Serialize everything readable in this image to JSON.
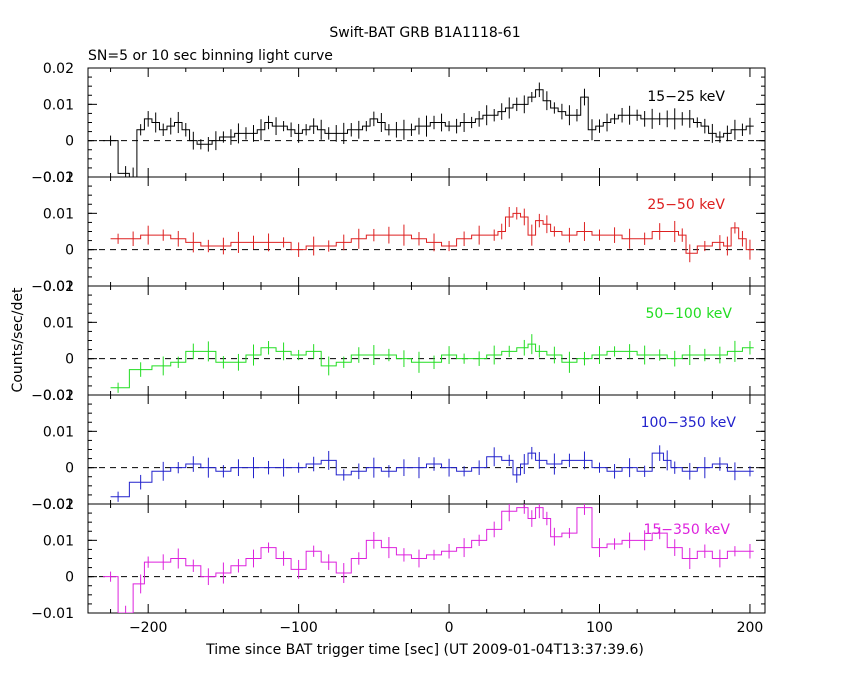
{
  "title": "Swift-BAT GRB B1A1118-61",
  "subtitle": "SN=5 or 10 sec binning light curve",
  "ylabel": "Counts/sec/det",
  "xlabel": "Time since BAT trigger time [sec] (UT 2009-01-04T13:37:39.6)",
  "chart_data": {
    "type": "line",
    "title": "Swift-BAT GRB B1A1118-61",
    "subtitle": "SN=5 or 10 sec binning light curve",
    "xlabel": "Time since BAT trigger time [sec] (UT 2009-01-04T13:37:39.6)",
    "ylabel": "Counts/sec/det",
    "xlim": [
      -240,
      210
    ],
    "x_ticks": [
      -200,
      -100,
      0,
      100,
      200
    ],
    "x_tick_labels": [
      "−200",
      "−100",
      "0",
      "100",
      "200"
    ],
    "grid": false,
    "legend": "none",
    "panels": [
      {
        "name": "15−25 keV",
        "color": "#000000",
        "ylim": [
          -0.01,
          0.02
        ],
        "y_ticks": [
          -0.01,
          0,
          0.01,
          0.02
        ],
        "y_tick_labels": [
          "−0.01",
          "0",
          "0.01",
          "0.02"
        ],
        "points": [
          [
            -225,
            0
          ],
          [
            -215,
            -0.009
          ],
          [
            -210,
            -0.01
          ],
          [
            -205,
            0.003
          ],
          [
            -200,
            0.006
          ],
          [
            -195,
            0.005
          ],
          [
            -190,
            0.003
          ],
          [
            -185,
            0.004
          ],
          [
            -180,
            0.005
          ],
          [
            -175,
            0.003
          ],
          [
            -170,
            0
          ],
          [
            -165,
            -0.001
          ],
          [
            -160,
            -0.001
          ],
          [
            -155,
            0
          ],
          [
            -150,
            0.001
          ],
          [
            -145,
            0.001
          ],
          [
            -140,
            0.002
          ],
          [
            -135,
            0.002
          ],
          [
            -130,
            0.002
          ],
          [
            -125,
            0.003
          ],
          [
            -120,
            0.005
          ],
          [
            -115,
            0.004
          ],
          [
            -110,
            0.004
          ],
          [
            -105,
            0.003
          ],
          [
            -100,
            0.002
          ],
          [
            -95,
            0.003
          ],
          [
            -90,
            0.004
          ],
          [
            -85,
            0.003
          ],
          [
            -80,
            0.002
          ],
          [
            -75,
            0.002
          ],
          [
            -70,
            0.002
          ],
          [
            -65,
            0.003
          ],
          [
            -60,
            0.003
          ],
          [
            -55,
            0.004
          ],
          [
            -50,
            0.006
          ],
          [
            -45,
            0.005
          ],
          [
            -40,
            0.003
          ],
          [
            -35,
            0.003
          ],
          [
            -30,
            0.003
          ],
          [
            -25,
            0.003
          ],
          [
            -20,
            0.004
          ],
          [
            -15,
            0.004
          ],
          [
            -10,
            0.005
          ],
          [
            -5,
            0.005
          ],
          [
            0,
            0.004
          ],
          [
            5,
            0.004
          ],
          [
            10,
            0.005
          ],
          [
            15,
            0.005
          ],
          [
            20,
            0.006
          ],
          [
            25,
            0.007
          ],
          [
            30,
            0.007
          ],
          [
            35,
            0.008
          ],
          [
            40,
            0.009
          ],
          [
            45,
            0.01
          ],
          [
            50,
            0.01
          ],
          [
            55,
            0.012
          ],
          [
            60,
            0.014
          ],
          [
            65,
            0.011
          ],
          [
            70,
            0.009
          ],
          [
            75,
            0.008
          ],
          [
            80,
            0.007
          ],
          [
            85,
            0.007
          ],
          [
            90,
            0.012
          ],
          [
            95,
            0.003
          ],
          [
            100,
            0.004
          ],
          [
            105,
            0.005
          ],
          [
            110,
            0.006
          ],
          [
            115,
            0.007
          ],
          [
            120,
            0.007
          ],
          [
            125,
            0.007
          ],
          [
            130,
            0.006
          ],
          [
            135,
            0.006
          ],
          [
            140,
            0.006
          ],
          [
            145,
            0.006
          ],
          [
            150,
            0.006
          ],
          [
            155,
            0.006
          ],
          [
            160,
            0.006
          ],
          [
            165,
            0.005
          ],
          [
            170,
            0.004
          ],
          [
            175,
            0.002
          ],
          [
            180,
            0.001
          ],
          [
            185,
            0.002
          ],
          [
            190,
            0.003
          ],
          [
            195,
            0.003
          ],
          [
            200,
            0.004
          ]
        ]
      },
      {
        "name": "25−50 keV",
        "color": "#dd2020",
        "ylim": [
          -0.01,
          0.02
        ],
        "y_ticks": [
          -0.01,
          0,
          0.01,
          0.02
        ],
        "y_tick_labels": [
          "−0.01",
          "0",
          "0.01",
          "0.02"
        ],
        "points": [
          [
            -220,
            0.003
          ],
          [
            -210,
            0.003
          ],
          [
            -200,
            0.004
          ],
          [
            -190,
            0.004
          ],
          [
            -180,
            0.003
          ],
          [
            -170,
            0.002
          ],
          [
            -160,
            0.001
          ],
          [
            -150,
            0.001
          ],
          [
            -140,
            0.002
          ],
          [
            -130,
            0.002
          ],
          [
            -120,
            0.002
          ],
          [
            -110,
            0.002
          ],
          [
            -100,
            0
          ],
          [
            -90,
            0.001
          ],
          [
            -80,
            0.001
          ],
          [
            -70,
            0.002
          ],
          [
            -60,
            0.003
          ],
          [
            -50,
            0.004
          ],
          [
            -40,
            0.004
          ],
          [
            -30,
            0.004
          ],
          [
            -20,
            0.003
          ],
          [
            -10,
            0.002
          ],
          [
            0,
            0.001
          ],
          [
            10,
            0.003
          ],
          [
            20,
            0.004
          ],
          [
            30,
            0.004
          ],
          [
            35,
            0.005
          ],
          [
            40,
            0.009
          ],
          [
            45,
            0.01
          ],
          [
            50,
            0.009
          ],
          [
            55,
            0.004
          ],
          [
            60,
            0.008
          ],
          [
            65,
            0.007
          ],
          [
            70,
            0.005
          ],
          [
            80,
            0.004
          ],
          [
            90,
            0.005
          ],
          [
            100,
            0.004
          ],
          [
            110,
            0.004
          ],
          [
            120,
            0.003
          ],
          [
            130,
            0.003
          ],
          [
            140,
            0.005
          ],
          [
            150,
            0.005
          ],
          [
            155,
            0.004
          ],
          [
            160,
            -0.001
          ],
          [
            170,
            0.001
          ],
          [
            180,
            0.002
          ],
          [
            185,
            0.001
          ],
          [
            190,
            0.006
          ],
          [
            195,
            0.003
          ],
          [
            200,
            0
          ]
        ]
      },
      {
        "name": "50−100 keV",
        "color": "#22dd22",
        "ylim": [
          -0.01,
          0.02
        ],
        "y_ticks": [
          -0.01,
          0,
          0.01,
          0.02
        ],
        "y_tick_labels": [
          "−0.01",
          "0",
          "0.01",
          "0.02"
        ],
        "points": [
          [
            -220,
            -0.008
          ],
          [
            -205,
            -0.003
          ],
          [
            -190,
            -0.002
          ],
          [
            -180,
            -0.001
          ],
          [
            -170,
            0.002
          ],
          [
            -160,
            0.002
          ],
          [
            -150,
            -0.001
          ],
          [
            -140,
            -0.001
          ],
          [
            -130,
            0.001
          ],
          [
            -120,
            0.003
          ],
          [
            -110,
            0.002
          ],
          [
            -100,
            0.001
          ],
          [
            -90,
            0.002
          ],
          [
            -80,
            -0.002
          ],
          [
            -70,
            -0.001
          ],
          [
            -60,
            0.001
          ],
          [
            -50,
            0.001
          ],
          [
            -40,
            0.001
          ],
          [
            -30,
            0
          ],
          [
            -20,
            -0.001
          ],
          [
            -10,
            -0.001
          ],
          [
            0,
            0.001
          ],
          [
            10,
            0
          ],
          [
            20,
            0
          ],
          [
            30,
            0.001
          ],
          [
            40,
            0.002
          ],
          [
            50,
            0.003
          ],
          [
            55,
            0.004
          ],
          [
            60,
            0.002
          ],
          [
            70,
            0.001
          ],
          [
            80,
            -0.001
          ],
          [
            90,
            0
          ],
          [
            100,
            0.001
          ],
          [
            110,
            0.002
          ],
          [
            120,
            0.002
          ],
          [
            130,
            0.001
          ],
          [
            140,
            0.001
          ],
          [
            150,
            0
          ],
          [
            160,
            0.001
          ],
          [
            170,
            0.001
          ],
          [
            180,
            0.001
          ],
          [
            190,
            0.002
          ],
          [
            200,
            0.003
          ]
        ]
      },
      {
        "name": "100−350 keV",
        "color": "#2222cc",
        "ylim": [
          -0.01,
          0.02
        ],
        "y_ticks": [
          -0.01,
          0,
          0.01,
          0.02
        ],
        "y_tick_labels": [
          "−0.01",
          "0",
          "0.01",
          "0.02"
        ],
        "points": [
          [
            -220,
            -0.008
          ],
          [
            -205,
            -0.004
          ],
          [
            -190,
            -0.001
          ],
          [
            -180,
            0
          ],
          [
            -170,
            0.001
          ],
          [
            -160,
            0
          ],
          [
            -150,
            -0.001
          ],
          [
            -140,
            0
          ],
          [
            -130,
            0
          ],
          [
            -120,
            0
          ],
          [
            -110,
            0
          ],
          [
            -100,
            0
          ],
          [
            -90,
            0.001
          ],
          [
            -80,
            0.002
          ],
          [
            -70,
            -0.002
          ],
          [
            -60,
            -0.001
          ],
          [
            -50,
            0
          ],
          [
            -40,
            -0.001
          ],
          [
            -30,
            0
          ],
          [
            -20,
            0
          ],
          [
            -10,
            0.001
          ],
          [
            0,
            0
          ],
          [
            10,
            -0.001
          ],
          [
            20,
            0
          ],
          [
            30,
            0.003
          ],
          [
            40,
            0.002
          ],
          [
            45,
            -0.002
          ],
          [
            50,
            0.001
          ],
          [
            55,
            0.004
          ],
          [
            60,
            0.002
          ],
          [
            70,
            0.001
          ],
          [
            80,
            0.002
          ],
          [
            90,
            0.002
          ],
          [
            100,
            0
          ],
          [
            110,
            -0.001
          ],
          [
            120,
            0
          ],
          [
            130,
            -0.001
          ],
          [
            140,
            0.004
          ],
          [
            145,
            0.002
          ],
          [
            150,
            0
          ],
          [
            160,
            -0.001
          ],
          [
            170,
            0
          ],
          [
            180,
            0.001
          ],
          [
            190,
            -0.001
          ],
          [
            200,
            -0.001
          ]
        ]
      },
      {
        "name": "15−350 keV",
        "color": "#dd22dd",
        "ylim": [
          -0.01,
          0.02
        ],
        "y_ticks": [
          -0.01,
          0,
          0.01,
          0.02
        ],
        "y_tick_labels": [
          "−0.01",
          "0",
          "0.01",
          "0.02"
        ],
        "points": [
          [
            -225,
            0
          ],
          [
            -215,
            -0.01
          ],
          [
            -205,
            -0.002
          ],
          [
            -200,
            0.004
          ],
          [
            -190,
            0.004
          ],
          [
            -180,
            0.005
          ],
          [
            -170,
            0.003
          ],
          [
            -160,
            0
          ],
          [
            -150,
            0.001
          ],
          [
            -140,
            0.003
          ],
          [
            -130,
            0.005
          ],
          [
            -120,
            0.008
          ],
          [
            -110,
            0.005
          ],
          [
            -100,
            0.002
          ],
          [
            -90,
            0.007
          ],
          [
            -80,
            0.004
          ],
          [
            -70,
            0.001
          ],
          [
            -60,
            0.005
          ],
          [
            -50,
            0.01
          ],
          [
            -40,
            0.008
          ],
          [
            -30,
            0.006
          ],
          [
            -20,
            0.005
          ],
          [
            -10,
            0.006
          ],
          [
            0,
            0.007
          ],
          [
            10,
            0.008
          ],
          [
            20,
            0.01
          ],
          [
            30,
            0.013
          ],
          [
            40,
            0.018
          ],
          [
            50,
            0.019
          ],
          [
            55,
            0.016
          ],
          [
            60,
            0.019
          ],
          [
            65,
            0.016
          ],
          [
            70,
            0.011
          ],
          [
            80,
            0.012
          ],
          [
            90,
            0.019
          ],
          [
            100,
            0.008
          ],
          [
            110,
            0.009
          ],
          [
            120,
            0.01
          ],
          [
            130,
            0.01
          ],
          [
            140,
            0.012
          ],
          [
            150,
            0.008
          ],
          [
            160,
            0.005
          ],
          [
            170,
            0.007
          ],
          [
            180,
            0.005
          ],
          [
            190,
            0.007
          ],
          [
            200,
            0.007
          ]
        ]
      }
    ]
  }
}
